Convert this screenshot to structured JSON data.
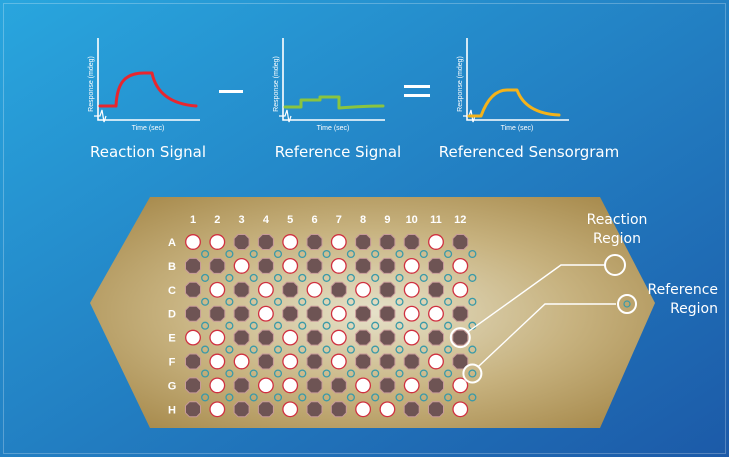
{
  "colors": {
    "bg_start": "#29a6de",
    "bg_end": "#1c5aa8",
    "plate_light": "#e6e1c9",
    "plate_dark": "#a78a4c",
    "reaction_curve": "#e8262e",
    "reference_curve": "#8ac43f",
    "referenced_curve": "#f4b31a",
    "filled_well": "#6e5454",
    "reaction_ring": "#d03040",
    "reference_ring": "#3a9aa8"
  },
  "plots": [
    {
      "caption": "Reaction Signal",
      "ylabel": "Response (mdeg)",
      "xlabel": "Time (sec)"
    },
    {
      "caption": "Reference Signal",
      "ylabel": "Response (mdeg)",
      "xlabel": "Time (sec)"
    },
    {
      "caption": "Referenced Sensorgram",
      "ylabel": "Response (mdeg)",
      "xlabel": "Time (sec)"
    }
  ],
  "operators": {
    "minus": "−",
    "equals": "="
  },
  "plate": {
    "columns": [
      "1",
      "2",
      "3",
      "4",
      "5",
      "6",
      "7",
      "8",
      "9",
      "10",
      "11",
      "12"
    ],
    "rows": [
      "A",
      "B",
      "C",
      "D",
      "E",
      "F",
      "G",
      "H"
    ],
    "filled_pattern": [
      "001101011101",
      "110101011010",
      "101010101010",
      "111011011001",
      "001101011011",
      "100101011101",
      "101001101010",
      "101101100110"
    ]
  },
  "callouts": {
    "reaction": [
      "Reaction",
      "Region"
    ],
    "reference": [
      "Reference",
      "Region"
    ]
  }
}
